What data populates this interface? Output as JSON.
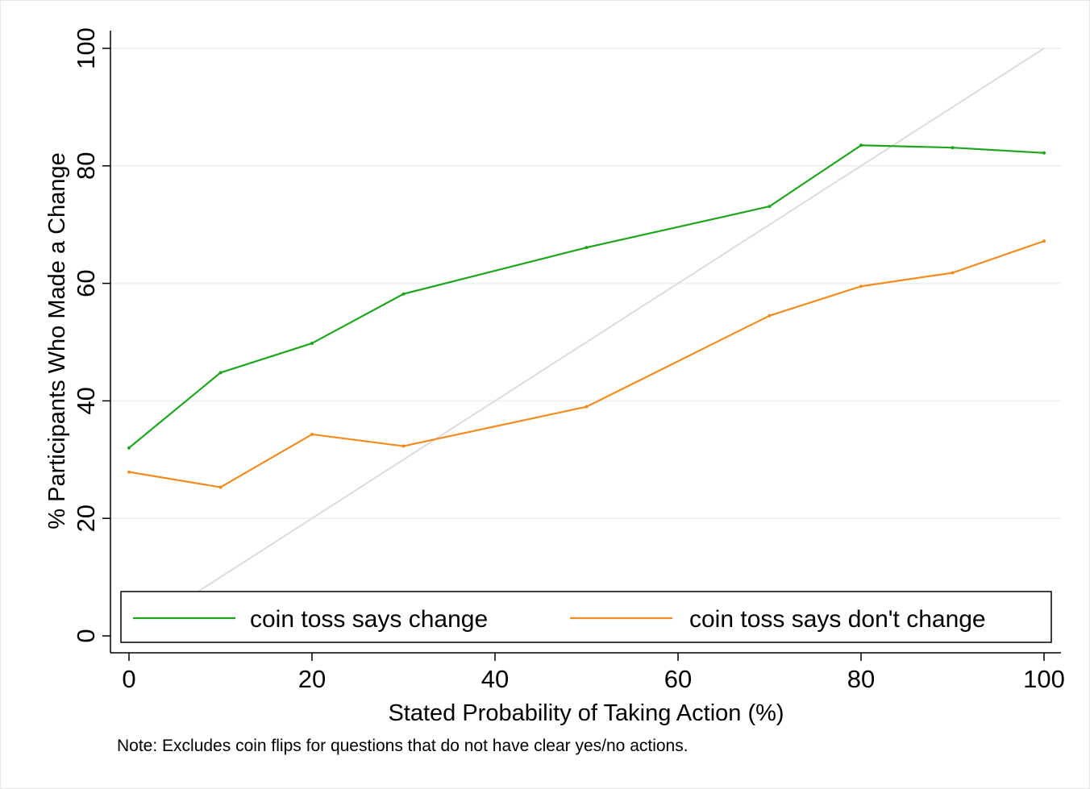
{
  "chart_data": {
    "type": "line",
    "title": "",
    "xlabel": "Stated Probability of Taking Action (%)",
    "ylabel": "% Participants Who Made a Change",
    "xlim": [
      0,
      100
    ],
    "ylim": [
      0,
      100
    ],
    "xticks": [
      "0",
      "20",
      "40",
      "60",
      "80",
      "100"
    ],
    "yticks": [
      "0",
      "20",
      "40",
      "60",
      "80",
      "100"
    ],
    "grid": "horizontal",
    "legend_position": "bottom-inside",
    "note": "Note: Excludes coin flips for questions that do not have clear yes/no actions.",
    "reference_line": {
      "x": [
        0,
        100
      ],
      "y": [
        0,
        100
      ],
      "color": "#dcdcdc"
    },
    "series": [
      {
        "name": "coin toss says change",
        "color": "#1fa61f",
        "x": [
          0,
          10,
          20,
          30,
          50,
          70,
          80,
          90,
          100
        ],
        "y": [
          32,
          44.8,
          49.8,
          58.2,
          66.1,
          73.1,
          83.5,
          83.1,
          82.2
        ]
      },
      {
        "name": "coin toss says don't change",
        "color": "#f28c1e",
        "x": [
          0,
          10,
          20,
          30,
          50,
          70,
          80,
          90,
          100
        ],
        "y": [
          27.9,
          25.3,
          34.3,
          32.3,
          39,
          54.5,
          59.5,
          61.8,
          67.2
        ]
      }
    ]
  }
}
